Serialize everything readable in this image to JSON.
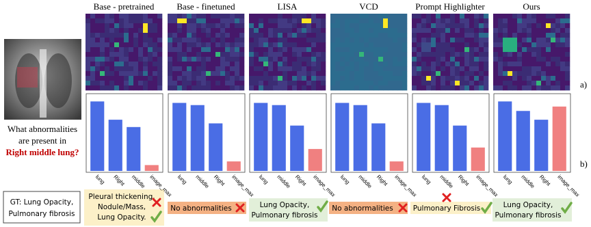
{
  "question": {
    "lines": [
      "What abnormalities",
      "are present in"
    ],
    "highlight": "Right middle lung?"
  },
  "ground_truth": {
    "lines": [
      "GT: Lung Opacity,",
      "Pulmonary fibrosis"
    ]
  },
  "row_labels": [
    "a)",
    "b)"
  ],
  "panels": [
    {
      "title": "Base - pretrained",
      "categories": [
        "lung",
        "Right",
        "middle",
        "image_max"
      ],
      "values": [
        0.95,
        0.7,
        0.6,
        0.08
      ],
      "colors": [
        "#4a6de5",
        "#4a6de5",
        "#4a6de5",
        "#f08080"
      ],
      "ylim": [
        0,
        1
      ],
      "answer": [
        "Pleural thickening,",
        "Nodule/Mass,",
        "Lung Opacity."
      ]
    },
    {
      "title": "Base - finetuned",
      "categories": [
        "lung",
        "middle",
        "Right",
        "image_max"
      ],
      "values": [
        0.93,
        0.9,
        0.65,
        0.13
      ],
      "colors": [
        "#4a6de5",
        "#4a6de5",
        "#4a6de5",
        "#f08080"
      ],
      "ylim": [
        0,
        1
      ],
      "answer": [
        "No abnormalities"
      ]
    },
    {
      "title": "LISA",
      "categories": [
        "lung",
        "middle",
        "Right",
        "image_max"
      ],
      "values": [
        0.93,
        0.9,
        0.62,
        0.3
      ],
      "colors": [
        "#4a6de5",
        "#4a6de5",
        "#4a6de5",
        "#f08080"
      ],
      "ylim": [
        0,
        1
      ],
      "answer": [
        "Lung Opacity,",
        "Pulmonary fibrosis"
      ]
    },
    {
      "title": "VCD",
      "categories": [
        "lung",
        "middle",
        "Right",
        "image_max"
      ],
      "values": [
        0.93,
        0.9,
        0.65,
        0.13
      ],
      "colors": [
        "#4a6de5",
        "#4a6de5",
        "#4a6de5",
        "#f08080"
      ],
      "ylim": [
        0,
        1
      ],
      "answer": [
        "No abnormalities"
      ]
    },
    {
      "title": "Prompt Highlighter",
      "categories": [
        "lung",
        "middle",
        "Right",
        "image_max"
      ],
      "values": [
        0.93,
        0.9,
        0.62,
        0.32
      ],
      "colors": [
        "#4a6de5",
        "#4a6de5",
        "#4a6de5",
        "#f08080"
      ],
      "ylim": [
        0,
        1
      ],
      "answer": [
        "Pulmonary Fibrosis"
      ]
    },
    {
      "title": "Ours",
      "categories": [
        "lung",
        "middle",
        "Right",
        "image_max"
      ],
      "values": [
        0.95,
        0.82,
        0.7,
        0.88
      ],
      "colors": [
        "#4a6de5",
        "#4a6de5",
        "#4a6de5",
        "#f08080"
      ],
      "ylim": [
        0,
        1
      ],
      "answer": [
        "Lung Opacity,",
        "Pulmonary fibrosis"
      ]
    }
  ]
}
